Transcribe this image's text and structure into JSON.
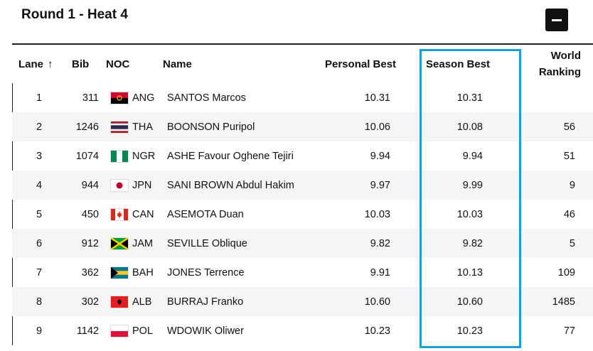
{
  "heat": {
    "title": "Round 1 - Heat 4"
  },
  "columns": {
    "lane": "Lane",
    "bib": "Bib",
    "noc": "NOC",
    "name": "Name",
    "personal_best": "Personal Best",
    "season_best": "Season Best",
    "world_ranking_line1": "World",
    "world_ranking_line2": "Ranking",
    "sort_icon": "arrow-up-icon"
  },
  "colors": {
    "highlight": "#1a9fd9",
    "row_alt": "#f5f5f5"
  },
  "rows": [
    {
      "lane": "1",
      "bib": "311",
      "noc": "ANG",
      "name": "SANTOS Marcos",
      "pb": "10.31",
      "sb": "10.31",
      "wr": ""
    },
    {
      "lane": "2",
      "bib": "1246",
      "noc": "THA",
      "name": "BOONSON Puripol",
      "pb": "10.06",
      "sb": "10.08",
      "wr": "56"
    },
    {
      "lane": "3",
      "bib": "1074",
      "noc": "NGR",
      "name": "ASHE Favour Oghene Tejiri",
      "pb": "9.94",
      "sb": "9.94",
      "wr": "51"
    },
    {
      "lane": "4",
      "bib": "944",
      "noc": "JPN",
      "name": "SANI BROWN Abdul Hakim",
      "pb": "9.97",
      "sb": "9.99",
      "wr": "9"
    },
    {
      "lane": "5",
      "bib": "450",
      "noc": "CAN",
      "name": "ASEMOTA Duan",
      "pb": "10.03",
      "sb": "10.03",
      "wr": "46"
    },
    {
      "lane": "6",
      "bib": "912",
      "noc": "JAM",
      "name": "SEVILLE Oblique",
      "pb": "9.82",
      "sb": "9.82",
      "wr": "5"
    },
    {
      "lane": "7",
      "bib": "362",
      "noc": "BAH",
      "name": "JONES Terrence",
      "pb": "9.91",
      "sb": "10.13",
      "wr": "109"
    },
    {
      "lane": "8",
      "bib": "302",
      "noc": "ALB",
      "name": "BURRAJ Franko",
      "pb": "10.60",
      "sb": "10.60",
      "wr": "1485"
    },
    {
      "lane": "9",
      "bib": "1142",
      "noc": "POL",
      "name": "WDOWIK Oliwer",
      "pb": "10.23",
      "sb": "10.23",
      "wr": "77"
    }
  ]
}
